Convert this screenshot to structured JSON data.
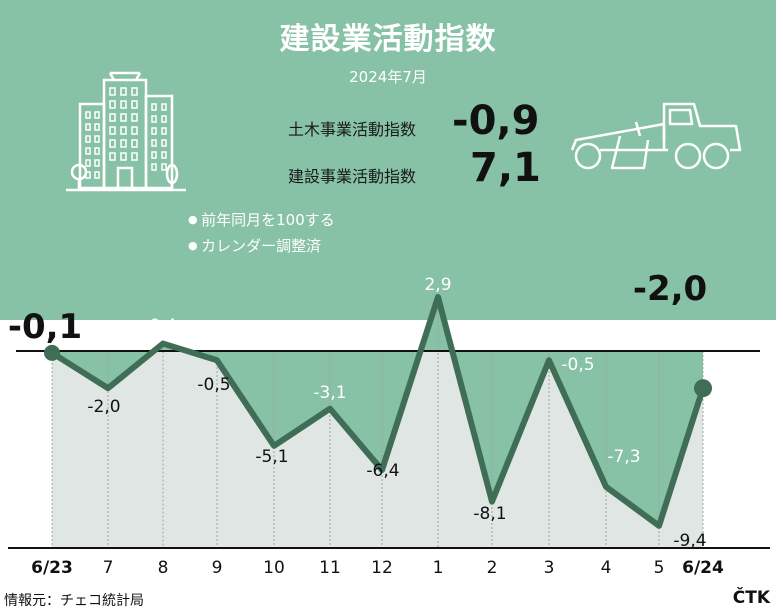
{
  "title": "建設業活動指数",
  "subtitle": "2024年7月",
  "kpis": [
    {
      "label": "土木事業活動指数",
      "value": "-0,9"
    },
    {
      "label": "建設事業活動指数",
      "value": "7,1"
    }
  ],
  "notes": [
    "前年同月を100する",
    "カレンダー調整済"
  ],
  "source": "情報元：チェコ統計局",
  "agency": "ČTK",
  "icons": [
    "building-icon",
    "road-grader-icon"
  ],
  "colors": {
    "fill": "#87c1a6",
    "line": "#3f6d55",
    "area": "#e0e6e3"
  },
  "chart_data": {
    "type": "line",
    "categories": [
      "6/23",
      "7",
      "8",
      "9",
      "10",
      "11",
      "12",
      "1",
      "2",
      "3",
      "4",
      "5",
      "6/24"
    ],
    "values": [
      -0.1,
      -2.0,
      0.4,
      -0.5,
      -5.1,
      -3.1,
      -6.4,
      2.9,
      -8.1,
      -0.5,
      -7.3,
      -9.4,
      -2.0
    ],
    "value_labels": [
      "-0,1",
      "-2,0",
      "0,4",
      "-0,5",
      "-5,1",
      "-3,1",
      "-6,4",
      "2,9",
      "-8,1",
      "-0,5",
      "-7,3",
      "-9,4",
      "-2,0"
    ],
    "baseline": 0,
    "ylim": [
      -11.5,
      5
    ],
    "grid": true
  }
}
